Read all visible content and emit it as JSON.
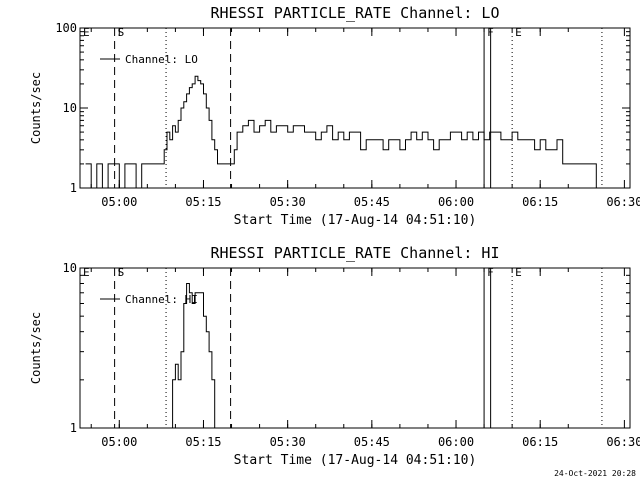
{
  "footer": {
    "timestamp": "24-Oct-2021 20:28"
  },
  "chart_data": [
    {
      "type": "line",
      "title": "RHESSI PARTICLE_RATE Channel: LO",
      "xlabel": "Start Time (17-Aug-14 04:51:10)",
      "ylabel": "Counts/sec",
      "xlim": [
        "04:53:00",
        "06:31:00"
      ],
      "ylim": [
        1,
        100
      ],
      "yscale": "log",
      "x_ticks": [
        "05:00",
        "05:15",
        "05:30",
        "05:45",
        "06:00",
        "06:15",
        "06:30"
      ],
      "y_ticks": [
        {
          "value": 1,
          "label": "1"
        },
        {
          "value": 10,
          "label": "10"
        },
        {
          "value": 100,
          "label": "100"
        }
      ],
      "legend": {
        "label": "Channel: LO",
        "position": "top-left"
      },
      "flags": [
        {
          "label": "E",
          "time": "04:53:00",
          "line": "none"
        },
        {
          "label": "S",
          "time": "04:59:10",
          "line": "dashed"
        },
        {
          "label": "",
          "time": "05:08:20",
          "line": "dotted"
        },
        {
          "label": "",
          "time": "05:19:50",
          "line": "dashed"
        },
        {
          "label": "F",
          "time": "06:05:00",
          "line": "solid"
        },
        {
          "label": "",
          "time": "06:06:10",
          "line": "solid"
        },
        {
          "label": "E",
          "time": "06:10:00",
          "line": "dotted"
        },
        {
          "label": "",
          "time": "06:26:00",
          "line": "dotted"
        }
      ],
      "series": [
        {
          "x": [
            "04:54:00",
            "04:55:00",
            "04:56:00",
            "04:57:00",
            "04:58:00",
            "04:59:00",
            "05:00:00",
            "05:01:00",
            "05:02:00",
            "05:03:00",
            "05:04:00",
            "05:05:00",
            "05:06:00",
            "05:07:00",
            "05:08:00",
            "05:08:30",
            "05:09:00",
            "05:09:30",
            "05:10:00",
            "05:10:30",
            "05:11:00",
            "05:11:30",
            "05:12:00",
            "05:12:30",
            "05:13:00",
            "05:13:30",
            "05:14:00",
            "05:14:30",
            "05:15:00",
            "05:15:30",
            "05:16:00",
            "05:16:30",
            "05:17:00",
            "05:17:30",
            "05:18:00",
            "05:18:30",
            "05:19:00",
            "05:19:30",
            "05:20:00",
            "05:20:30",
            "05:21:00",
            "05:22:00",
            "05:23:00",
            "05:24:00",
            "05:25:00",
            "05:26:00",
            "05:27:00",
            "05:28:00",
            "05:29:00",
            "05:30:00",
            "05:31:00",
            "05:32:00",
            "05:33:00",
            "05:34:00",
            "05:35:00",
            "05:36:00",
            "05:37:00",
            "05:38:00",
            "05:39:00",
            "05:40:00",
            "05:41:00",
            "05:42:00",
            "05:43:00",
            "05:44:00",
            "05:45:00",
            "05:46:00",
            "05:47:00",
            "05:48:00",
            "05:49:00",
            "05:50:00",
            "05:51:00",
            "05:52:00",
            "05:53:00",
            "05:54:00",
            "05:55:00",
            "05:56:00",
            "05:57:00",
            "05:58:00",
            "05:59:00",
            "06:00:00",
            "06:01:00",
            "06:02:00",
            "06:03:00",
            "06:04:00",
            "06:05:00",
            "06:06:00",
            "06:07:00",
            "06:08:00",
            "06:09:00",
            "06:10:00",
            "06:11:00",
            "06:12:00",
            "06:13:00",
            "06:14:00",
            "06:15:00",
            "06:16:00",
            "06:17:00",
            "06:18:00",
            "06:19:00",
            "06:20:00",
            "06:21:00",
            "06:22:00",
            "06:23:00",
            "06:24:00",
            "06:25:00"
          ],
          "y": [
            2,
            1,
            2,
            1,
            2,
            2,
            1,
            2,
            2,
            1,
            2,
            2,
            2,
            2,
            3,
            5,
            4,
            6,
            5,
            7,
            10,
            12,
            15,
            18,
            20,
            25,
            22,
            20,
            15,
            10,
            7,
            4,
            3,
            2,
            2,
            2,
            2,
            2,
            2,
            3,
            5,
            6,
            7,
            5,
            6,
            7,
            5,
            6,
            6,
            5,
            6,
            6,
            5,
            5,
            4,
            5,
            6,
            4,
            5,
            4,
            5,
            5,
            3,
            4,
            4,
            4,
            3,
            4,
            4,
            3,
            4,
            5,
            4,
            5,
            4,
            3,
            4,
            4,
            5,
            5,
            4,
            5,
            4,
            5,
            4,
            5,
            5,
            4,
            4,
            5,
            4,
            4,
            4,
            3,
            4,
            3,
            3,
            4,
            2,
            2,
            2,
            2,
            2,
            2,
            1
          ],
          "step": true
        }
      ]
    },
    {
      "type": "line",
      "title": "RHESSI PARTICLE_RATE Channel: HI",
      "xlabel": "Start Time (17-Aug-14 04:51:10)",
      "ylabel": "Counts/sec",
      "xlim": [
        "04:53:00",
        "06:31:00"
      ],
      "ylim": [
        1,
        10
      ],
      "yscale": "log",
      "x_ticks": [
        "05:00",
        "05:15",
        "05:30",
        "05:45",
        "06:00",
        "06:15",
        "06:30"
      ],
      "y_ticks": [
        {
          "value": 1,
          "label": "1"
        },
        {
          "value": 10,
          "label": "10"
        }
      ],
      "legend": {
        "label": "Channel: HI",
        "position": "top-left"
      },
      "flags": [
        {
          "label": "E",
          "time": "04:53:00",
          "line": "none"
        },
        {
          "label": "S",
          "time": "04:59:10",
          "line": "dashed"
        },
        {
          "label": "",
          "time": "05:08:20",
          "line": "dotted"
        },
        {
          "label": "",
          "time": "05:19:50",
          "line": "dashed"
        },
        {
          "label": "F",
          "time": "06:05:00",
          "line": "solid"
        },
        {
          "label": "",
          "time": "06:06:10",
          "line": "solid"
        },
        {
          "label": "E",
          "time": "06:10:00",
          "line": "dotted"
        },
        {
          "label": "",
          "time": "06:26:00",
          "line": "dotted"
        }
      ],
      "series": [
        {
          "x": [
            "05:09:00",
            "05:09:30",
            "05:10:00",
            "05:10:30",
            "05:11:00",
            "05:11:30",
            "05:12:00",
            "05:12:30",
            "05:13:00",
            "05:13:30",
            "05:14:00",
            "05:14:30",
            "05:15:00",
            "05:15:30",
            "05:16:00",
            "05:16:30",
            "05:17:00"
          ],
          "y": [
            1,
            2,
            2.5,
            2,
            3,
            6,
            8,
            7,
            6,
            7,
            7,
            7,
            5,
            4,
            3,
            2,
            1
          ],
          "step": true
        }
      ]
    }
  ]
}
